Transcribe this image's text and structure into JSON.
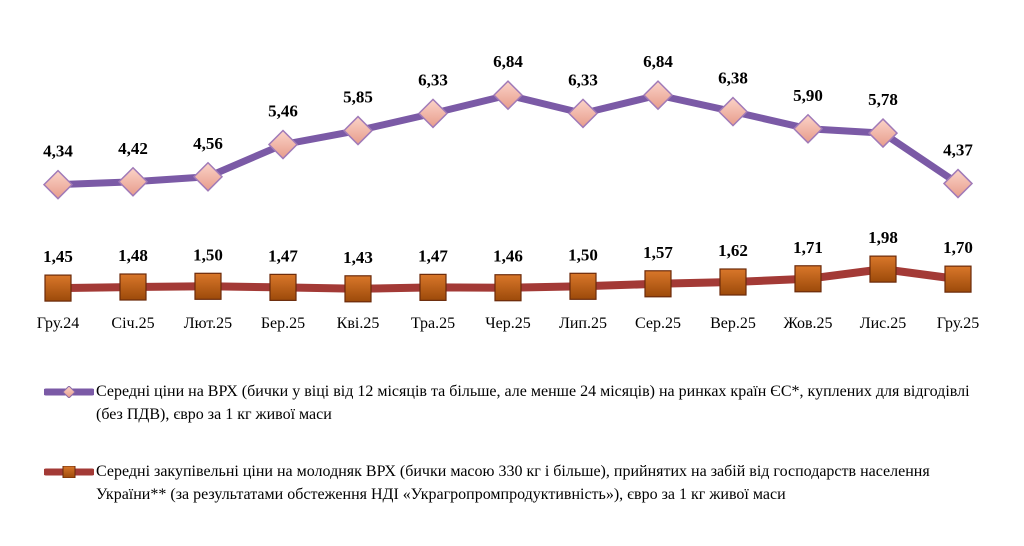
{
  "chart_data": {
    "type": "line",
    "title": "",
    "xlabel": "",
    "ylabel": "",
    "categories": [
      "Гру.24",
      "Січ.25",
      "Лют.25",
      "Бер.25",
      "Кві.25",
      "Тра.25",
      "Чер.25",
      "Лип.25",
      "Сер.25",
      "Вер.25",
      "Жов.25",
      "Лис.25",
      "Гру.25"
    ],
    "ylim": [
      0,
      7.5
    ],
    "grid": false,
    "legend_position": "bottom",
    "series": [
      {
        "name": "Середні ціни на ВРХ (бички у віці від 12 місяців та більше, але менше 24 місяців) на ринках країн ЄС*, куплених для відгодівлі (без ПДВ), євро за 1 кг живої маси",
        "marker": "diamond",
        "line_color": "#7b5aa6",
        "marker_color": "#f4b6a8",
        "values": [
          4.34,
          4.42,
          4.56,
          5.46,
          5.85,
          6.33,
          6.84,
          6.33,
          6.84,
          6.38,
          5.9,
          5.78,
          4.37
        ],
        "labels": [
          "4,34",
          "4,42",
          "4,56",
          "5,46",
          "5,85",
          "6,33",
          "6,84",
          "6,33",
          "6,84",
          "6,38",
          "5,90",
          "5,78",
          "4,37"
        ]
      },
      {
        "name": "Середні закупівельні ціни на молодняк ВРХ (бички масою 330 кг і більше), прийнятих на забій від господарств населення України** (за результатами обстеження НДІ «Украгропромпродуктивність»), євро за 1 кг живої маси",
        "marker": "square",
        "line_color": "#a33a36",
        "marker_color": "#c0600f",
        "values": [
          1.45,
          1.48,
          1.5,
          1.47,
          1.43,
          1.47,
          1.46,
          1.5,
          1.57,
          1.62,
          1.71,
          1.98,
          1.7
        ],
        "labels": [
          "1,45",
          "1,48",
          "1,50",
          "1,47",
          "1,43",
          "1,47",
          "1,46",
          "1,50",
          "1,57",
          "1,62",
          "1,71",
          "1,98",
          "1,70"
        ]
      }
    ]
  }
}
